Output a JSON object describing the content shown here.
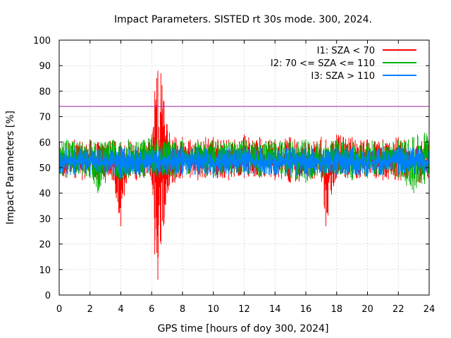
{
  "chart_data": {
    "type": "line",
    "title": "Impact Parameters. SISTED rt 30s mode. 300, 2024.",
    "xlabel": "GPS time [hours of doy 300, 2024]",
    "ylabel": "Impact Parameters [%]",
    "xlim": [
      0,
      24
    ],
    "ylim": [
      0,
      100
    ],
    "x_ticks": [
      0,
      2,
      4,
      6,
      8,
      10,
      12,
      14,
      16,
      18,
      20,
      22,
      24
    ],
    "y_ticks": [
      0,
      10,
      20,
      30,
      40,
      50,
      60,
      70,
      80,
      90,
      100
    ],
    "grid": true,
    "legend_position": "top-right",
    "threshold": {
      "value": 74,
      "color": "#a020a0"
    },
    "series": [
      {
        "name": "I1: SZA < 70",
        "color": "#ff0000",
        "x": [
          0,
          0.5,
          1,
          1.5,
          2,
          2.5,
          3,
          3.5,
          4,
          4.5,
          5,
          5.5,
          6,
          6.2,
          6.4,
          6.6,
          6.8,
          7,
          7.5,
          8,
          8.5,
          9,
          9.5,
          10,
          11,
          12,
          13,
          14,
          15,
          16,
          17,
          17.3,
          18,
          19,
          20,
          21,
          22,
          23,
          24
        ],
        "min": [
          45,
          46,
          46,
          45,
          46,
          45,
          44,
          45,
          27,
          46,
          45,
          46,
          45,
          16,
          6,
          20,
          28,
          40,
          44,
          46,
          46,
          45,
          46,
          46,
          45,
          46,
          46,
          45,
          44,
          45,
          46,
          27,
          46,
          45,
          46,
          45,
          45,
          44,
          43
        ],
        "max": [
          59,
          60,
          61,
          60,
          61,
          60,
          60,
          61,
          60,
          61,
          60,
          61,
          62,
          80,
          88,
          87,
          76,
          67,
          62,
          62,
          61,
          61,
          62,
          62,
          61,
          63,
          62,
          61,
          62,
          61,
          62,
          61,
          63,
          62,
          61,
          61,
          62,
          61,
          60
        ]
      },
      {
        "name": "I2: 70 <= SZA <= 110",
        "color": "#00b000",
        "x": [
          0,
          0.5,
          1,
          1.5,
          2,
          2.5,
          3,
          3.5,
          4,
          4.5,
          5,
          5.5,
          6,
          6.5,
          7,
          7.5,
          8,
          9,
          10,
          11,
          12,
          13,
          14,
          15,
          16,
          17,
          18,
          19,
          20,
          21,
          22,
          23,
          24
        ],
        "min": [
          47,
          46,
          47,
          47,
          46,
          40,
          46,
          47,
          45,
          46,
          47,
          46,
          47,
          46,
          47,
          46,
          47,
          47,
          46,
          47,
          47,
          46,
          47,
          46,
          44,
          46,
          47,
          45,
          46,
          47,
          46,
          40,
          45
        ],
        "max": [
          60,
          61,
          60,
          60,
          61,
          60,
          60,
          61,
          60,
          61,
          60,
          61,
          63,
          61,
          61,
          60,
          61,
          60,
          61,
          60,
          61,
          60,
          61,
          60,
          61,
          60,
          61,
          60,
          61,
          60,
          61,
          62,
          66
        ]
      },
      {
        "name": "I3: SZA > 110",
        "color": "#0080ff",
        "x": [
          0,
          1,
          2,
          3,
          4,
          5,
          6,
          7,
          8,
          9,
          10,
          11,
          12,
          13,
          14,
          15,
          16,
          17,
          18,
          19,
          20,
          21,
          22,
          23,
          24
        ],
        "min": [
          47,
          47,
          47,
          47,
          46,
          47,
          47,
          47,
          47,
          47,
          46,
          47,
          47,
          47,
          47,
          47,
          46,
          47,
          47,
          47,
          46,
          47,
          47,
          47,
          47
        ],
        "max": [
          58,
          58,
          58,
          57,
          58,
          58,
          57,
          58,
          58,
          58,
          57,
          58,
          58,
          58,
          57,
          58,
          58,
          57,
          58,
          58,
          57,
          58,
          58,
          58,
          57
        ]
      }
    ]
  }
}
